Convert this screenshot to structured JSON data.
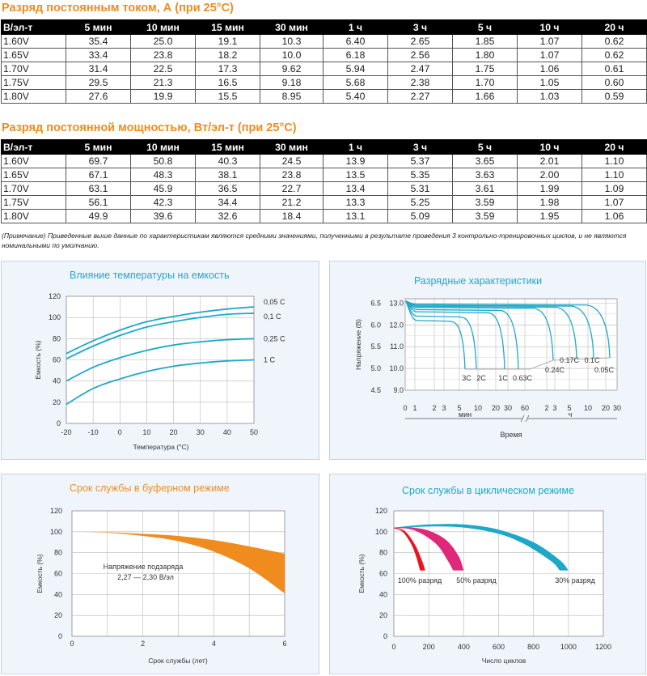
{
  "tables": [
    {
      "title": "Разряд постоянным током, А (при 25°С)",
      "headers": [
        "В/эл-т",
        "5 мин",
        "10 мин",
        "15 мин",
        "30 мин",
        "1 ч",
        "3 ч",
        "5 ч",
        "10 ч",
        "20 ч"
      ],
      "rows": [
        [
          "1.60V",
          "35.4",
          "25.0",
          "19.1",
          "10.3",
          "6.40",
          "2.65",
          "1.85",
          "1.07",
          "0.62"
        ],
        [
          "1.65V",
          "33.4",
          "23.8",
          "18.2",
          "10.0",
          "6.18",
          "2.56",
          "1.80",
          "1.07",
          "0.62"
        ],
        [
          "1.70V",
          "31.4",
          "22.5",
          "17.3",
          "9.62",
          "5.94",
          "2.47",
          "1.75",
          "1.06",
          "0.61"
        ],
        [
          "1.75V",
          "29.5",
          "21.3",
          "16.5",
          "9.18",
          "5.68",
          "2.38",
          "1.70",
          "1.05",
          "0.60"
        ],
        [
          "1.80V",
          "27.6",
          "19.9",
          "15.5",
          "8.95",
          "5.40",
          "2.27",
          "1.66",
          "1.03",
          "0.59"
        ]
      ]
    },
    {
      "title": "Разряд постоянной мощностью, Вт/эл-т (при 25°С)",
      "headers": [
        "В/эл-т",
        "5 мин",
        "10 мин",
        "15 мин",
        "30 мин",
        "1 ч",
        "3 ч",
        "5 ч",
        "10 ч",
        "20 ч"
      ],
      "rows": [
        [
          "1.60V",
          "69.7",
          "50.8",
          "40.3",
          "24.5",
          "13.9",
          "5.37",
          "3.65",
          "2.01",
          "1.10"
        ],
        [
          "1.65V",
          "67.1",
          "48.3",
          "38.1",
          "23.8",
          "13.5",
          "5.35",
          "3.63",
          "2.00",
          "1.10"
        ],
        [
          "1.70V",
          "63.1",
          "45.9",
          "36.5",
          "22.7",
          "13.4",
          "5.31",
          "3.61",
          "1.99",
          "1.09"
        ],
        [
          "1.75V",
          "56.1",
          "42.3",
          "34.4",
          "21.2",
          "13.3",
          "5.25",
          "3.59",
          "1.98",
          "1.07"
        ],
        [
          "1.80V",
          "49.9",
          "39.6",
          "32.6",
          "18.4",
          "13.1",
          "5.09",
          "3.59",
          "1.95",
          "1.06"
        ]
      ]
    }
  ],
  "note": "(Примечание) Приведенные выше данные по характеристикам являются средними значениями, полученными в результате проведения 3 контрольно-тренировочных циклов, и не являются номинальными по умолчанию.",
  "colors": {
    "accent": "#f08c1e",
    "curve": "#1ea8c8",
    "red": "#e8141e",
    "magenta": "#e0287a",
    "panel": "#f0f5fc"
  },
  "chart_data": [
    {
      "type": "line",
      "title": "Влияние температуры на емкость",
      "xlabel": "Температура (°С)",
      "ylabel": "Емкость (%)",
      "xlim": [
        -20,
        50
      ],
      "ylim": [
        0,
        120
      ],
      "xticks": [
        "-20",
        "-10",
        "0",
        "10",
        "20",
        "30",
        "40",
        "50"
      ],
      "yticks": [
        "0",
        "20",
        "40",
        "60",
        "80",
        "100",
        "120"
      ],
      "series": [
        {
          "name": "0,05 С",
          "x": [
            -20,
            -10,
            0,
            10,
            20,
            30,
            40,
            50
          ],
          "values": [
            66,
            78,
            88,
            96,
            101,
            105,
            108,
            110
          ]
        },
        {
          "name": "0,1 С",
          "x": [
            -20,
            -10,
            0,
            10,
            20,
            30,
            40,
            50
          ],
          "values": [
            61,
            73,
            83,
            91,
            96,
            100,
            103,
            104
          ]
        },
        {
          "name": "0,25 С",
          "x": [
            -20,
            -10,
            0,
            10,
            20,
            30,
            40,
            50
          ],
          "values": [
            40,
            53,
            62,
            69,
            74,
            77,
            79,
            80
          ]
        },
        {
          "name": "1 С",
          "x": [
            -20,
            -10,
            0,
            10,
            20,
            30,
            40,
            50
          ],
          "values": [
            18,
            33,
            42,
            49,
            54,
            57,
            59,
            60
          ]
        }
      ]
    },
    {
      "type": "line",
      "title": "Разрядные характеристики",
      "xlabel": "Время",
      "ylabel": "Напряжение (В)",
      "ylim_right": [
        9.0,
        13.0
      ],
      "ylim_left": [
        4.5,
        6.5
      ],
      "yticks_left": [
        "4.5",
        "5.0",
        "5.5",
        "6.0",
        "6.5"
      ],
      "yticks_right": [
        "9.0",
        "10.0",
        "11.0",
        "12.0",
        "13.0"
      ],
      "xticks": [
        "0",
        "1",
        "2",
        "3",
        "5",
        "10",
        "20",
        "30",
        "60",
        "2",
        "3",
        "5",
        "10",
        "20",
        "30"
      ],
      "x_unit_min": "мин",
      "x_unit_h": "ч",
      "series_labels": [
        "3С",
        "2С",
        "1С",
        "0.63С",
        "0.24С",
        "0.17С",
        "0.1С",
        "0.05С"
      ],
      "series": [
        {
          "name": "3С",
          "end_minutes": 4.5,
          "end_voltage": 9.6
        },
        {
          "name": "2С",
          "end_minutes": 7.5,
          "end_voltage": 9.6
        },
        {
          "name": "1С",
          "end_minutes": 20,
          "end_voltage": 9.6
        },
        {
          "name": "0.63С",
          "end_minutes": 40,
          "end_voltage": 9.6
        },
        {
          "name": "0.24С",
          "end_minutes": 180,
          "end_voltage": 10.2
        },
        {
          "name": "0.17С",
          "end_minutes": 300,
          "end_voltage": 10.5
        },
        {
          "name": "0.1С",
          "end_minutes": 600,
          "end_voltage": 10.5
        },
        {
          "name": "0.05С",
          "end_minutes": 1200,
          "end_voltage": 10.5
        }
      ]
    },
    {
      "type": "area",
      "title": "Срок службы в буферном режиме",
      "xlabel": "Срок службы (лет)",
      "ylabel": "Емкость (%)",
      "xlim": [
        0,
        6
      ],
      "ylim": [
        0,
        120
      ],
      "xticks": [
        "0",
        "2",
        "4",
        "6"
      ],
      "yticks": [
        "0",
        "20",
        "40",
        "60",
        "80",
        "100",
        "120"
      ],
      "annotation": [
        "Напряжение подзаряда",
        "2,27 — 2,30 В/эл"
      ],
      "upper": {
        "x": [
          0,
          1,
          2,
          3,
          4,
          5,
          6
        ],
        "values": [
          100,
          99.5,
          98,
          96,
          92,
          86,
          79
        ]
      },
      "lower": {
        "x": [
          0,
          1,
          2,
          3,
          4,
          5,
          6
        ],
        "values": [
          100,
          99,
          96,
          91,
          81,
          65,
          41
        ]
      }
    },
    {
      "type": "area",
      "title": "Срок службы в циклическом режиме",
      "xlabel": "Число циклов",
      "ylabel": "Емкость (%)",
      "xlim": [
        0,
        1200
      ],
      "ylim": [
        0,
        120
      ],
      "xticks": [
        "0",
        "200",
        "400",
        "600",
        "800",
        "1000",
        "1200"
      ],
      "yticks": [
        "0",
        "20",
        "40",
        "60",
        "80",
        "100",
        "120"
      ],
      "series": [
        {
          "name": "100% разряд",
          "color": "#e8141e",
          "upper": {
            "x": [
              0,
              60,
              120,
              160,
              180
            ],
            "values": [
              103,
              101,
              88,
              73,
              63
            ]
          },
          "lower": {
            "x": [
              0,
              50,
              100,
              130,
              150
            ],
            "values": [
              103,
              100,
              88,
              75,
              63
            ]
          }
        },
        {
          "name": "50% разряд",
          "color": "#e0287a",
          "upper": {
            "x": [
              0,
              100,
              200,
              300,
              370,
              400
            ],
            "values": [
              104,
              104,
              101,
              92,
              77,
              63
            ]
          },
          "lower": {
            "x": [
              0,
              80,
              160,
              250,
              310,
              340
            ],
            "values": [
              103,
              103,
              98,
              87,
              72,
              63
            ]
          }
        },
        {
          "name": "30% разряд",
          "color": "#1ea8c8",
          "upper": {
            "x": [
              0,
              200,
              400,
              600,
              800,
              950,
              1000
            ],
            "values": [
              104,
              107,
              107,
              102,
              90,
              73,
              63
            ]
          },
          "lower": {
            "x": [
              0,
              200,
              400,
              600,
              750,
              900,
              950
            ],
            "values": [
              103,
              105,
              104,
              98,
              88,
              72,
              63
            ]
          }
        }
      ]
    }
  ]
}
